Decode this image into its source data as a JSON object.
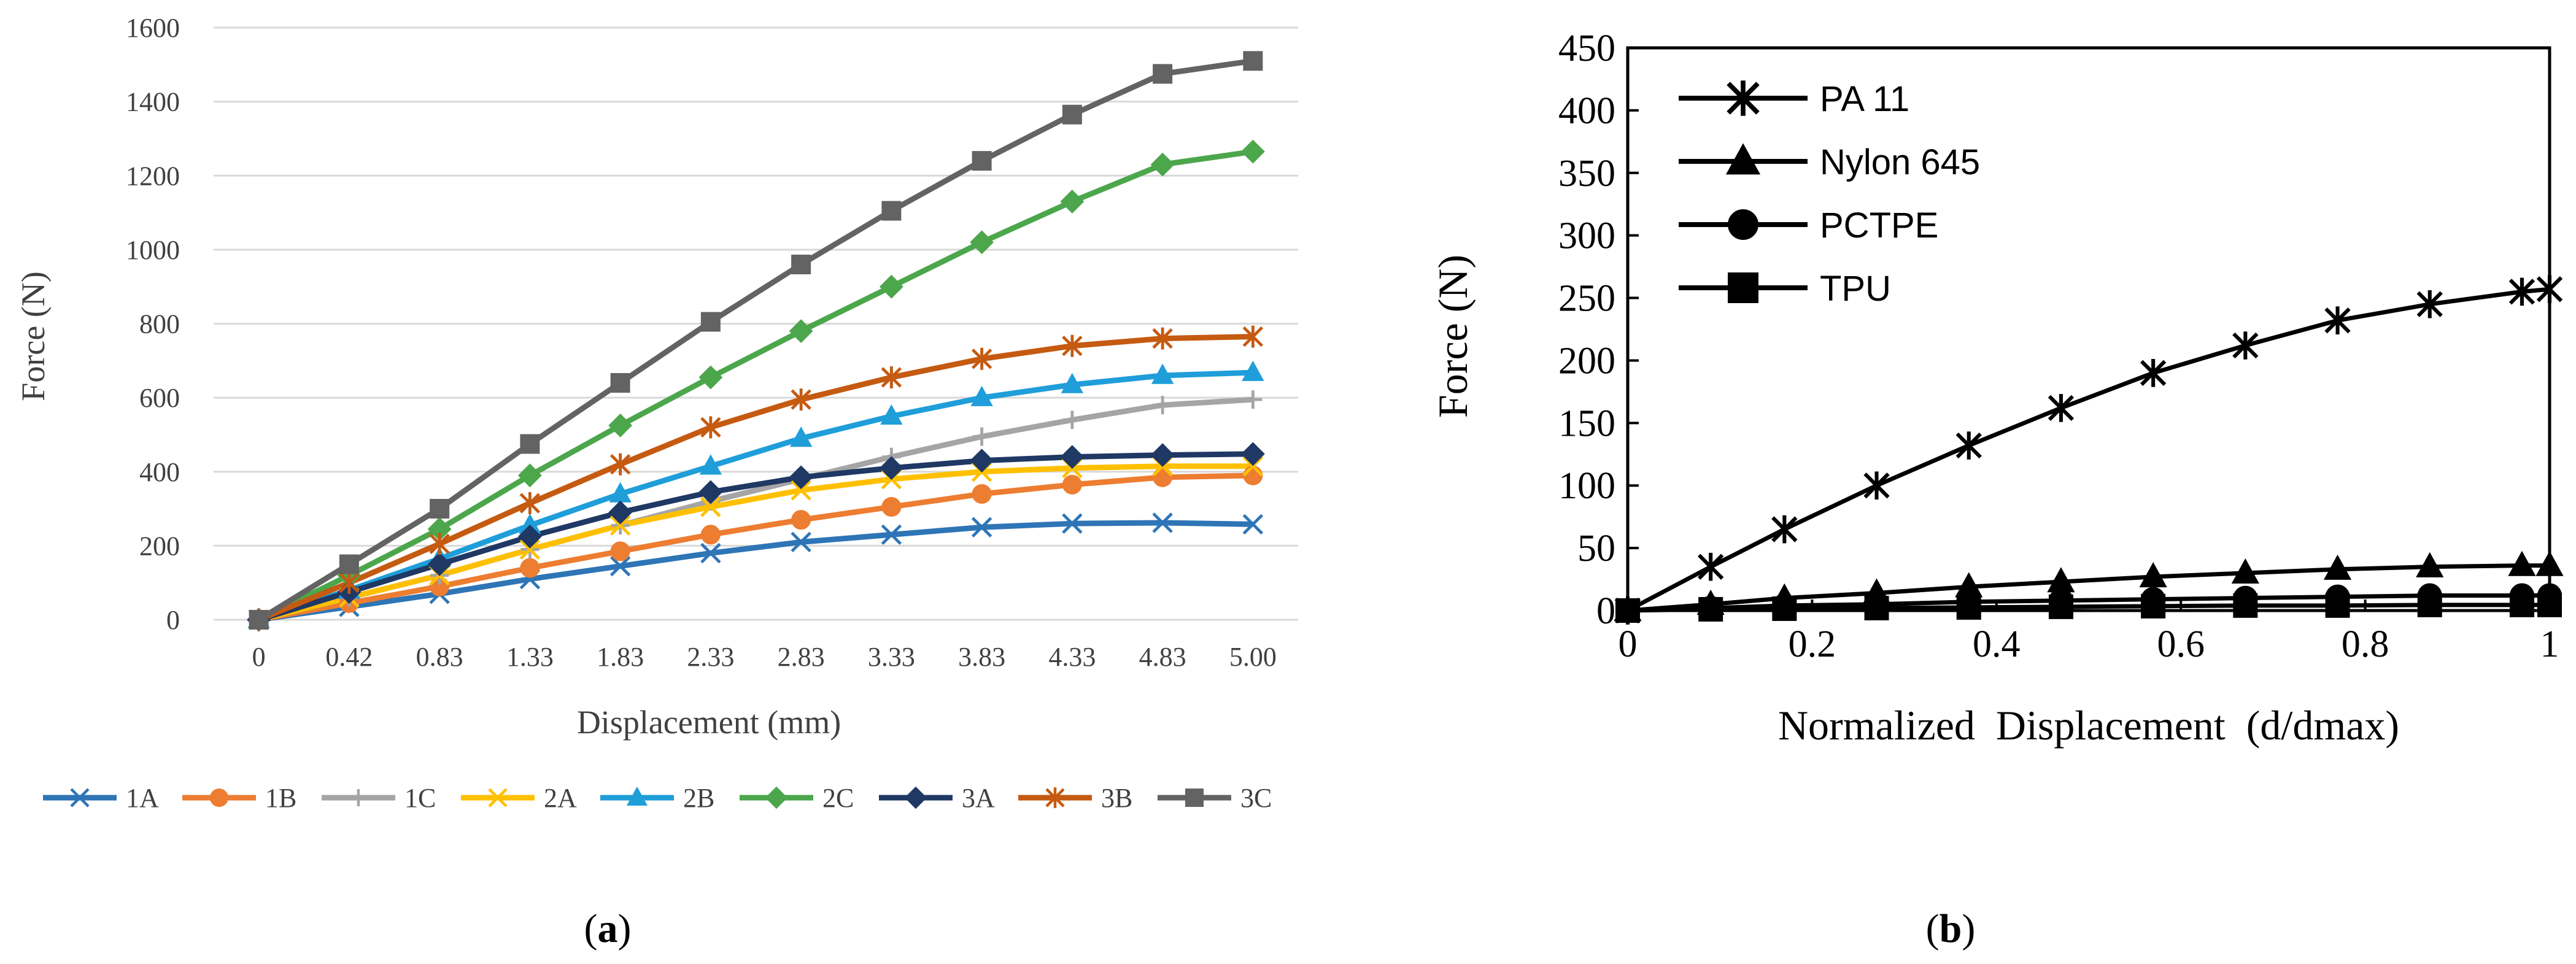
{
  "chart_data": [
    {
      "type": "line",
      "panel_label": "(a)",
      "panel_letter": "a",
      "title": "",
      "xlabel": "Displacement (mm)",
      "ylabel": "Force (N)",
      "categories": [
        "0",
        "0.42",
        "0.83",
        "1.33",
        "1.83",
        "2.33",
        "2.83",
        "3.33",
        "3.83",
        "4.33",
        "4.83",
        "5.00"
      ],
      "ylim": [
        0,
        1600
      ],
      "yticks": [
        0,
        200,
        400,
        600,
        800,
        1000,
        1200,
        1400,
        1600
      ],
      "grid": true,
      "legend_position": "bottom",
      "series": [
        {
          "name": "1A",
          "color": "#2e75b6",
          "marker": "x",
          "values": [
            0,
            35,
            70,
            110,
            145,
            180,
            210,
            230,
            250,
            260,
            262,
            258
          ]
        },
        {
          "name": "1B",
          "color": "#ed7d31",
          "marker": "circle",
          "values": [
            0,
            45,
            90,
            140,
            185,
            230,
            270,
            305,
            340,
            365,
            385,
            390
          ]
        },
        {
          "name": "1C",
          "color": "#a5a5a5",
          "marker": "plus",
          "values": [
            0,
            60,
            120,
            190,
            255,
            320,
            380,
            440,
            495,
            540,
            580,
            595
          ]
        },
        {
          "name": "2A",
          "color": "#ffc000",
          "marker": "x",
          "values": [
            0,
            60,
            120,
            190,
            255,
            305,
            350,
            380,
            400,
            410,
            415,
            415
          ]
        },
        {
          "name": "2B",
          "color": "#1f9ed9",
          "marker": "triangle",
          "values": [
            0,
            80,
            165,
            255,
            340,
            415,
            490,
            550,
            600,
            635,
            660,
            668
          ]
        },
        {
          "name": "2C",
          "color": "#4ca64c",
          "marker": "diamond",
          "values": [
            0,
            120,
            245,
            390,
            525,
            655,
            780,
            900,
            1020,
            1130,
            1230,
            1265
          ]
        },
        {
          "name": "3A",
          "color": "#1f3864",
          "marker": "diamond",
          "values": [
            0,
            75,
            150,
            225,
            290,
            345,
            385,
            410,
            430,
            440,
            445,
            448
          ]
        },
        {
          "name": "3B",
          "color": "#c55a11",
          "marker": "asterisk",
          "values": [
            0,
            100,
            205,
            315,
            420,
            520,
            595,
            655,
            705,
            740,
            760,
            765
          ]
        },
        {
          "name": "3C",
          "color": "#636363",
          "marker": "square",
          "values": [
            0,
            150,
            300,
            475,
            640,
            805,
            960,
            1105,
            1240,
            1365,
            1475,
            1510
          ]
        }
      ]
    },
    {
      "type": "line",
      "panel_label": "(b)",
      "panel_letter": "b",
      "title": "",
      "xlabel": "Normalized  Displacement  (d/dmax)",
      "ylabel": "Force (N)",
      "x": [
        0,
        0.09,
        0.17,
        0.27,
        0.37,
        0.47,
        0.57,
        0.67,
        0.77,
        0.87,
        0.97,
        1.0
      ],
      "xlim": [
        0,
        1
      ],
      "xticks": [
        0,
        0.2,
        0.4,
        0.6,
        0.8,
        1
      ],
      "xtick_labels": [
        "0",
        "0.2",
        "0.4",
        "0.6",
        "0.8",
        "1"
      ],
      "ylim": [
        0,
        450
      ],
      "yticks": [
        0,
        50,
        100,
        150,
        200,
        250,
        300,
        350,
        400,
        450
      ],
      "grid": false,
      "legend_position": "top-left",
      "series": [
        {
          "name": "PA 11",
          "color": "#000000",
          "marker": "asterisk",
          "values": [
            0,
            35,
            65,
            100,
            132,
            162,
            190,
            212,
            232,
            245,
            255,
            257
          ]
        },
        {
          "name": "Nylon 645",
          "color": "#000000",
          "marker": "triangle",
          "values": [
            0,
            5,
            10,
            14,
            19,
            23,
            27,
            30,
            33,
            35,
            36,
            36
          ]
        },
        {
          "name": "PCTPE",
          "color": "#000000",
          "marker": "circle",
          "values": [
            0,
            2,
            4,
            5,
            7,
            8,
            9,
            10,
            11,
            12,
            12,
            12
          ]
        },
        {
          "name": "TPU",
          "color": "#000000",
          "marker": "square",
          "values": [
            0,
            1,
            1.5,
            2,
            2.5,
            3,
            3.5,
            4,
            4,
            4.5,
            4.5,
            4.5
          ]
        }
      ]
    }
  ]
}
